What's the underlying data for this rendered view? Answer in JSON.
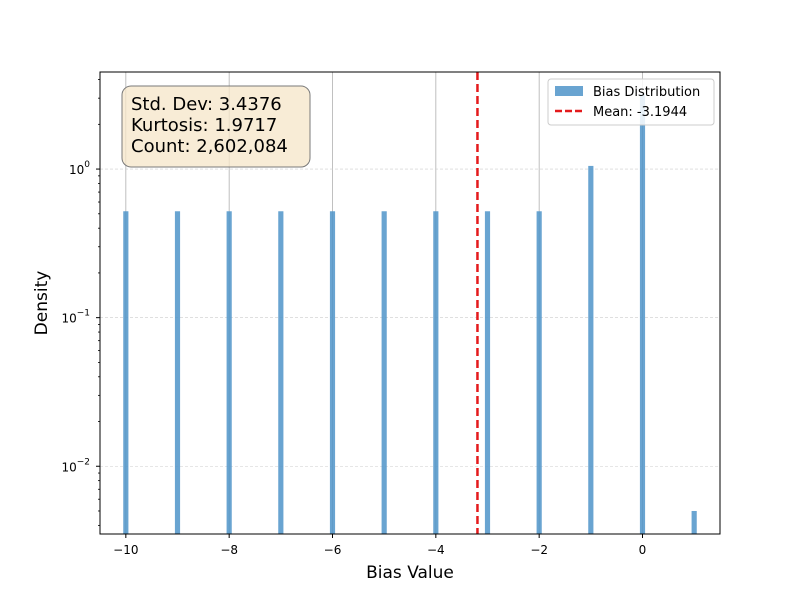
{
  "chart_data": {
    "type": "bar",
    "xlabel": "Bias Value",
    "ylabel": "Density",
    "y_scale": "log",
    "xlim": [
      -10.5,
      1.5
    ],
    "ylim": [
      0.0035,
      4.5
    ],
    "x_ticks": [
      -10,
      -8,
      -6,
      -4,
      -2,
      0
    ],
    "x_tick_labels": [
      "−10",
      "−8",
      "−6",
      "−4",
      "−2",
      "0"
    ],
    "y_ticks": [
      0.01,
      0.1,
      1
    ],
    "y_tick_labels": [
      {
        "base": "10",
        "exp": "−2"
      },
      {
        "base": "10",
        "exp": "−1"
      },
      {
        "base": "10",
        "exp": "0"
      }
    ],
    "grid": true,
    "series": [
      {
        "name": "Bias Distribution",
        "color": "#4f94c9",
        "bin_width": 0.1,
        "x": [
          -10,
          -9,
          -8,
          -7,
          -6,
          -5,
          -4,
          -3,
          -2,
          -1,
          0,
          1
        ],
        "values": [
          0.52,
          0.52,
          0.52,
          0.52,
          0.52,
          0.52,
          0.52,
          0.52,
          0.52,
          1.05,
          3.2,
          0.005
        ]
      }
    ],
    "mean_line": {
      "label": "Mean: -3.1944",
      "value": -3.1944,
      "color": "#e41a1c"
    },
    "legend": {
      "position": "top-right",
      "entries": [
        "Bias Distribution",
        "Mean: -3.1944"
      ]
    },
    "stats_box": {
      "lines": [
        "Std. Dev: 3.4376",
        "Kurtosis: 1.9717",
        "Count: 2,602,084"
      ],
      "position": "top-left"
    }
  }
}
